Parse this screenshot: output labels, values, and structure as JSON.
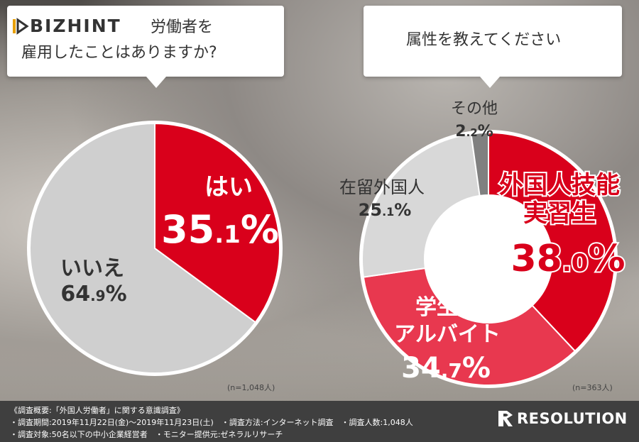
{
  "header": {
    "logo": "BIZHINT",
    "left_question_line1": "労働者を",
    "left_question_line2": "雇用したことはありますか?",
    "right_question": "属性を教えてください"
  },
  "chart_data": [
    {
      "type": "pie",
      "labels": [
        "はい",
        "いいえ"
      ],
      "values": [
        35.1,
        64.9
      ],
      "label_values": [
        "35.1%",
        "64.9%"
      ],
      "sample": "(n=1,048人)",
      "colors": [
        "#d9001b",
        "#cfcfcf"
      ]
    },
    {
      "type": "pie",
      "variant": "donut",
      "labels": [
        "外国人技能実習生",
        "学生のアルバイト",
        "在留外国人",
        "その他"
      ],
      "label_lines": [
        [
          "外国人技能",
          "実習生"
        ],
        [
          "学生の",
          "アルバイト"
        ],
        [
          "在留外国人"
        ],
        [
          "その他"
        ]
      ],
      "values": [
        38.0,
        34.7,
        25.1,
        2.2
      ],
      "label_values": [
        "38.0%",
        "34.7%",
        "25.1%",
        "2.2%"
      ],
      "sample": "(n=363人)",
      "colors": [
        "#d9001b",
        "#e8384f",
        "#d8d8d8",
        "#808080"
      ]
    }
  ],
  "footer": {
    "line1": "《調査概要:「外国人労働者」に関する意識調査》",
    "line2": "・調査期間:2019年11月22日(金)〜2019年11月23日(土)　・調査方法:インターネット調査　・調査人数:1,048人",
    "line3": "・調査対象:50名以下の中小企業経営者　・モニター提供元:ゼネラルリサーチ",
    "brand": "RESOLUTION"
  }
}
